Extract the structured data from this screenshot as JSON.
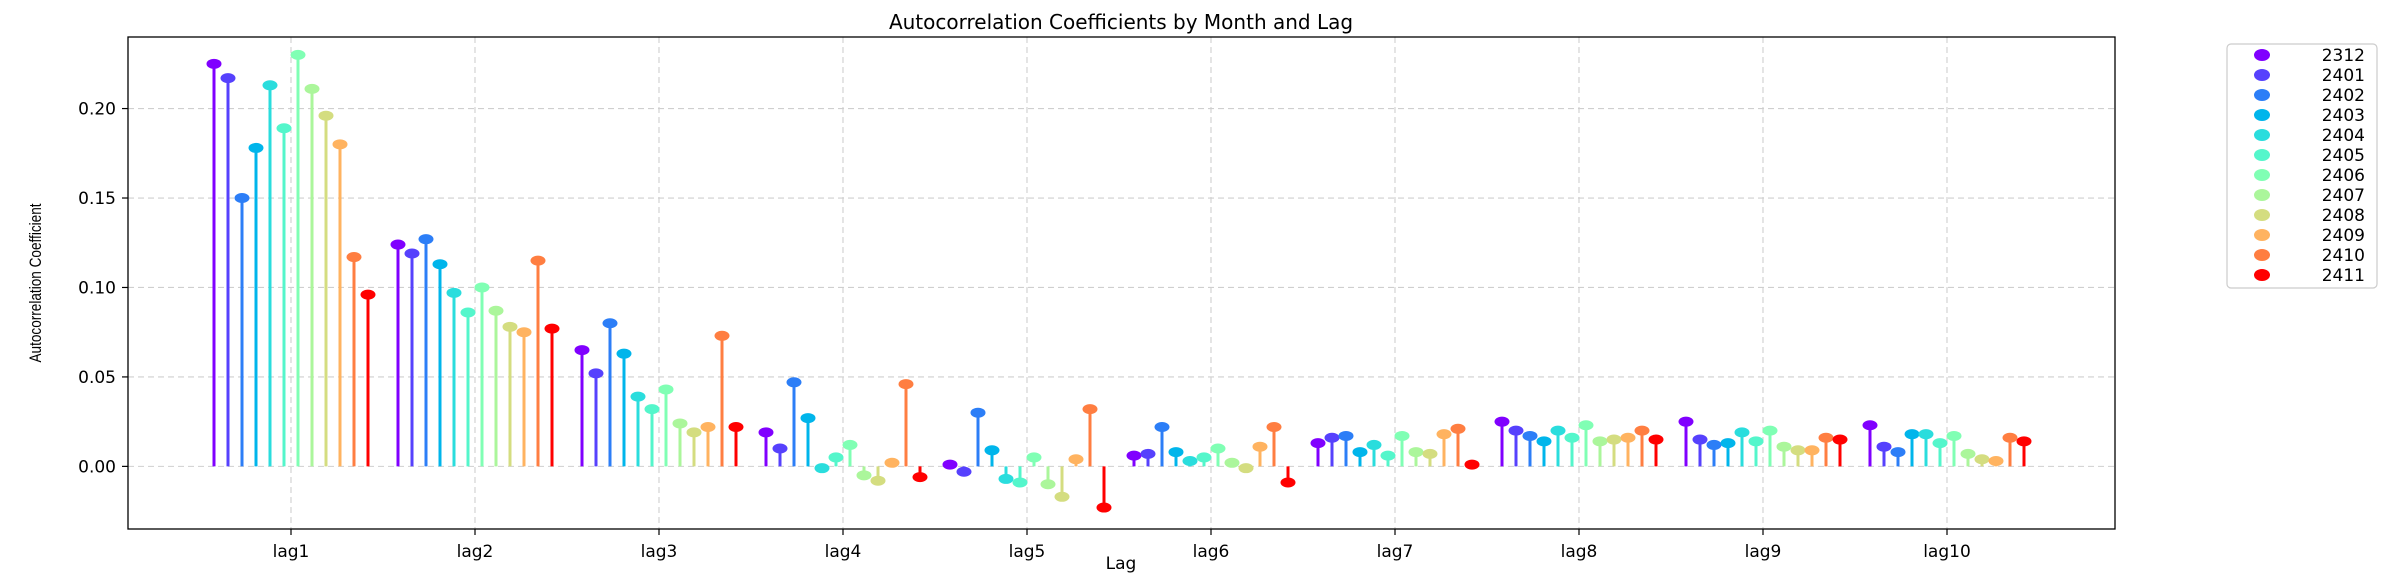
{
  "chart_data": {
    "type": "lollipop",
    "title": "Autocorrelation Coefficients by Month and Lag",
    "xlabel": "Lag",
    "ylabel": "Autocorrelation Coefficient",
    "categories": [
      "lag1",
      "lag2",
      "lag3",
      "lag4",
      "lag5",
      "lag6",
      "lag7",
      "lag8",
      "lag9",
      "lag10"
    ],
    "ylim": [
      -0.035,
      0.24
    ],
    "yticks": [
      0.0,
      0.05,
      0.1,
      0.15,
      0.2
    ],
    "ytick_labels": [
      "0.00",
      "0.05",
      "0.10",
      "0.15",
      "0.20"
    ],
    "grid": true,
    "legend_position": "outside-top-right",
    "series": [
      {
        "name": "2312",
        "color": "#8000ff",
        "values": [
          0.225,
          0.124,
          0.065,
          0.019,
          0.001,
          0.006,
          0.013,
          0.025,
          0.025,
          0.023
        ]
      },
      {
        "name": "2401",
        "color": "#5641fd",
        "values": [
          0.217,
          0.119,
          0.052,
          0.01,
          -0.003,
          0.007,
          0.016,
          0.02,
          0.015,
          0.011
        ]
      },
      {
        "name": "2402",
        "color": "#2c7ef7",
        "values": [
          0.15,
          0.127,
          0.08,
          0.047,
          0.03,
          0.022,
          0.017,
          0.017,
          0.012,
          0.008
        ]
      },
      {
        "name": "2403",
        "color": "#00b5eb",
        "values": [
          0.178,
          0.113,
          0.063,
          0.027,
          0.009,
          0.008,
          0.008,
          0.014,
          0.013,
          0.018
        ]
      },
      {
        "name": "2404",
        "color": "#2adddd",
        "values": [
          0.213,
          0.097,
          0.039,
          -0.001,
          -0.007,
          0.003,
          0.012,
          0.02,
          0.019,
          0.018
        ]
      },
      {
        "name": "2405",
        "color": "#54f6cb",
        "values": [
          0.189,
          0.086,
          0.032,
          0.005,
          -0.009,
          0.005,
          0.006,
          0.016,
          0.014,
          0.013
        ]
      },
      {
        "name": "2406",
        "color": "#80ffb4",
        "values": [
          0.23,
          0.1,
          0.043,
          0.012,
          0.005,
          0.01,
          0.017,
          0.023,
          0.02,
          0.017
        ]
      },
      {
        "name": "2407",
        "color": "#abf69b",
        "values": [
          0.211,
          0.087,
          0.024,
          -0.005,
          -0.01,
          0.002,
          0.008,
          0.014,
          0.011,
          0.007
        ]
      },
      {
        "name": "2408",
        "color": "#d4dd80",
        "values": [
          0.196,
          0.078,
          0.019,
          -0.008,
          -0.017,
          -0.001,
          0.007,
          0.015,
          0.009,
          0.004
        ]
      },
      {
        "name": "2409",
        "color": "#ffb360",
        "values": [
          0.18,
          0.075,
          0.022,
          0.002,
          0.004,
          0.011,
          0.018,
          0.016,
          0.009,
          0.003
        ]
      },
      {
        "name": "2410",
        "color": "#ff7e41",
        "values": [
          0.117,
          0.115,
          0.073,
          0.046,
          0.032,
          0.022,
          0.021,
          0.02,
          0.016,
          0.016
        ]
      },
      {
        "name": "2411",
        "color": "#ff0000",
        "values": [
          0.096,
          0.077,
          0.022,
          -0.006,
          -0.023,
          -0.009,
          0.001,
          0.015,
          0.015,
          0.014
        ]
      }
    ]
  }
}
